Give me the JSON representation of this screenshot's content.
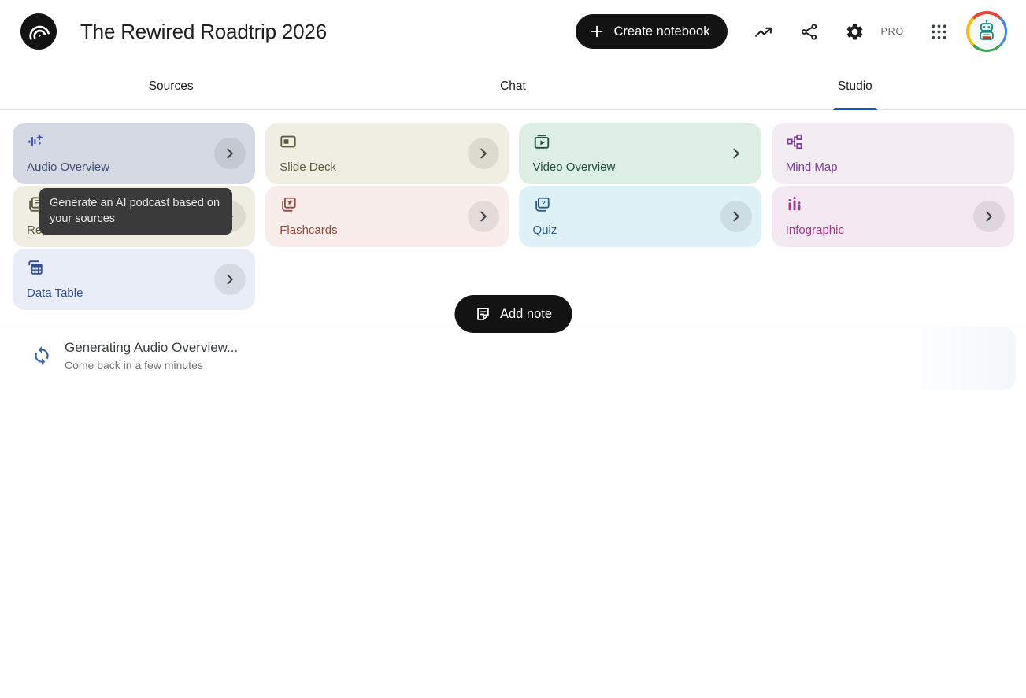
{
  "header": {
    "title": "The Rewired Roadtrip 2026",
    "create_notebook_label": "Create notebook",
    "pro_badge": "PRO",
    "icons": [
      "notebooklm-logo-icon",
      "plus-icon",
      "trending-up-icon",
      "share-icon",
      "settings-gear-icon",
      "apps-grid-icon",
      "robot-avatar"
    ]
  },
  "tabs": [
    {
      "label": "Sources",
      "active": false
    },
    {
      "label": "Chat",
      "active": false
    },
    {
      "label": "Studio",
      "active": true
    }
  ],
  "studio": {
    "cards": [
      {
        "id": "audio-overview",
        "label": "Audio Overview",
        "icon": "audio-waveform-sparkle-icon",
        "bg": "#d5d9e3",
        "fg": "#414f72",
        "icon_color": "#3f57a8",
        "chevron": true,
        "chevron_circle": true
      },
      {
        "id": "slide-deck",
        "label": "Slide Deck",
        "icon": "slide-deck-icon",
        "bg": "#f0ede2",
        "fg": "#5f5c41",
        "chevron": true,
        "chevron_circle": true
      },
      {
        "id": "video-overview",
        "label": "Video Overview",
        "icon": "video-overview-icon",
        "bg": "#ddeee4",
        "fg": "#24503a",
        "chevron": true,
        "chevron_circle": false
      },
      {
        "id": "mind-map",
        "label": "Mind Map",
        "icon": "mind-map-icon",
        "bg": "#f3edf3",
        "fg": "#7c4095",
        "chevron": false,
        "chevron_circle": false
      },
      {
        "id": "reports",
        "label": "Reports",
        "icon": "reports-icon",
        "bg": "#f0ede2",
        "fg": "#5f5c41",
        "chevron": true,
        "chevron_circle": true
      },
      {
        "id": "flashcards",
        "label": "Flashcards",
        "icon": "flashcards-icon",
        "bg": "#f8edea",
        "fg": "#9c4a3d",
        "chevron": true,
        "chevron_circle": true
      },
      {
        "id": "quiz",
        "label": "Quiz",
        "icon": "quiz-icon",
        "bg": "#def1f7",
        "fg": "#2d5e86",
        "chevron": true,
        "chevron_circle": true
      },
      {
        "id": "infographic",
        "label": "Infographic",
        "icon": "infographic-icon",
        "bg": "#f4e9f2",
        "fg": "#a1398c",
        "chevron": true,
        "chevron_circle": true
      },
      {
        "id": "data-table",
        "label": "Data Table",
        "icon": "data-table-icon",
        "bg": "#e9edf7",
        "fg": "#34508f",
        "chevron": true,
        "chevron_circle": true
      }
    ],
    "tooltip": {
      "text": "Generate an AI podcast based on your sources"
    },
    "generating": {
      "title": "Generating Audio Overview...",
      "subtitle": "Come back in a few minutes",
      "icon": "sync-icon"
    },
    "add_note_label": "Add note",
    "add_note_icon": "note-icon"
  },
  "colors": {
    "accent_blue": "#0b57d0",
    "header_button_bg": "#131314",
    "tooltip_bg": "#3a3a3a",
    "sync_blue": "#3b64ae",
    "divider": "#e7e8ea",
    "chevron_color": "#3c4043",
    "chevron_circle_overlay": "rgba(0,0,0,0.08)"
  }
}
